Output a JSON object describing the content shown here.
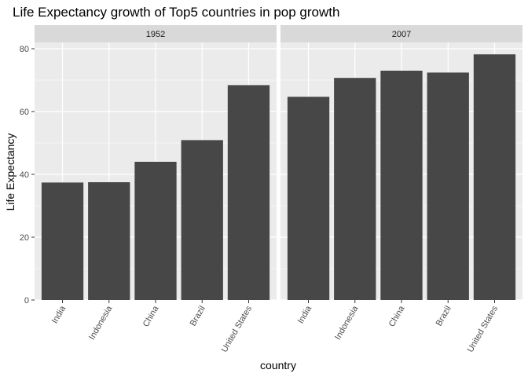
{
  "chart_data": {
    "type": "bar",
    "title": "Life Expectancy growth of Top5 countries in pop growth",
    "xlabel": "country",
    "ylabel": "Life Expectancy",
    "categories": [
      "India",
      "Indonesia",
      "China",
      "Brazil",
      "United States"
    ],
    "ylim": [
      0,
      82
    ],
    "yticks": [
      0,
      20,
      40,
      60,
      80
    ],
    "panels": [
      {
        "label": "1952",
        "values": [
          37.4,
          37.5,
          44.0,
          50.9,
          68.4
        ]
      },
      {
        "label": "2007",
        "values": [
          64.7,
          70.7,
          73.0,
          72.4,
          78.2
        ]
      }
    ],
    "grid": true,
    "colors": {
      "bar": "#474747",
      "panel_bg": "#ebebeb",
      "strip_bg": "#d9d9d9",
      "grid": "#ffffff"
    }
  }
}
